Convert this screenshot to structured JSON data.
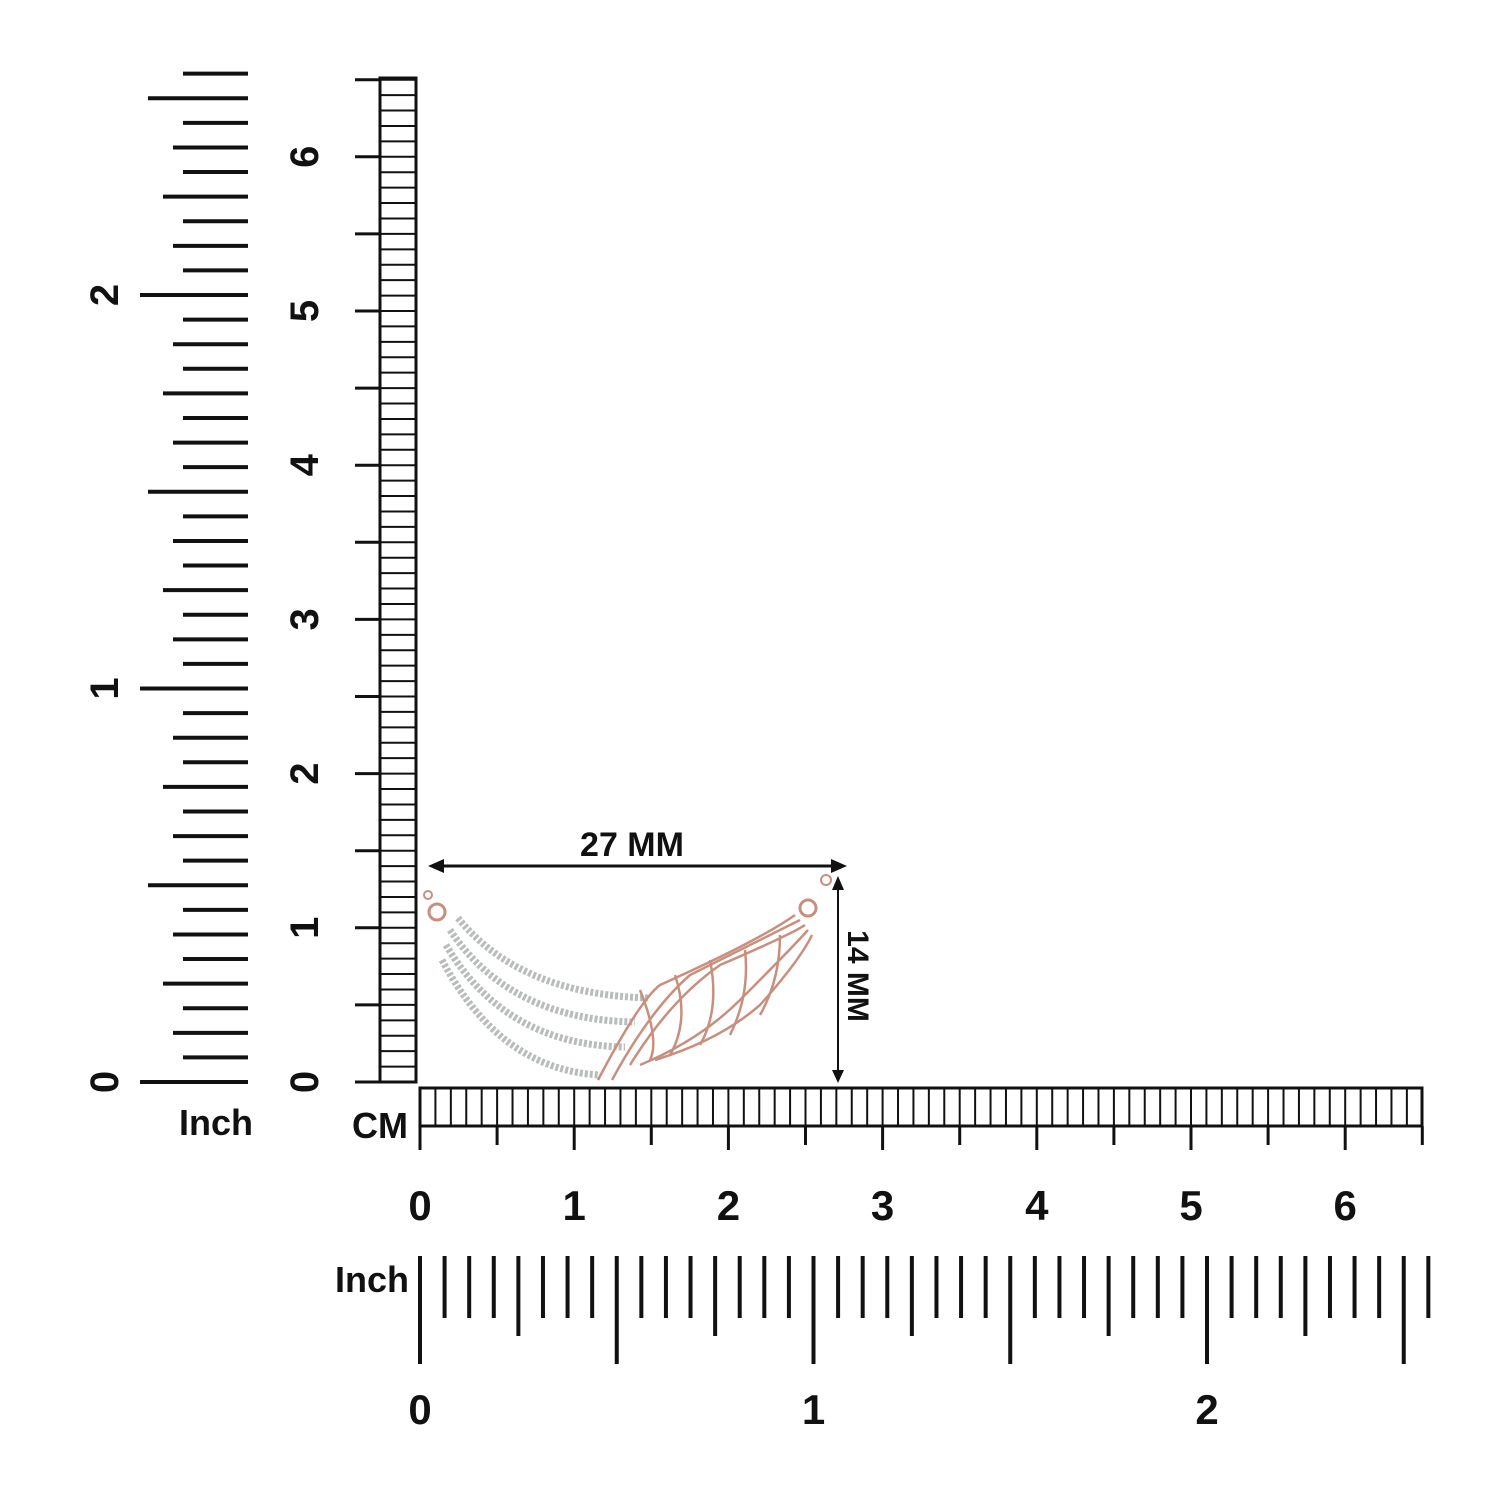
{
  "dimensions": {
    "width": "27 MM",
    "height": "14 MM"
  },
  "left_rulers": {
    "inch_label": "Inch",
    "inch_ticks": [
      0,
      1,
      2
    ],
    "cm_ticks": [
      0,
      1,
      2,
      3,
      4,
      5,
      6
    ]
  },
  "bottom_rulers": {
    "cm_label": "CM",
    "cm_ticks": [
      0,
      1,
      2,
      3,
      4,
      5,
      6
    ],
    "inch_label": "Inch",
    "inch_ticks": [
      0,
      1,
      2
    ]
  }
}
